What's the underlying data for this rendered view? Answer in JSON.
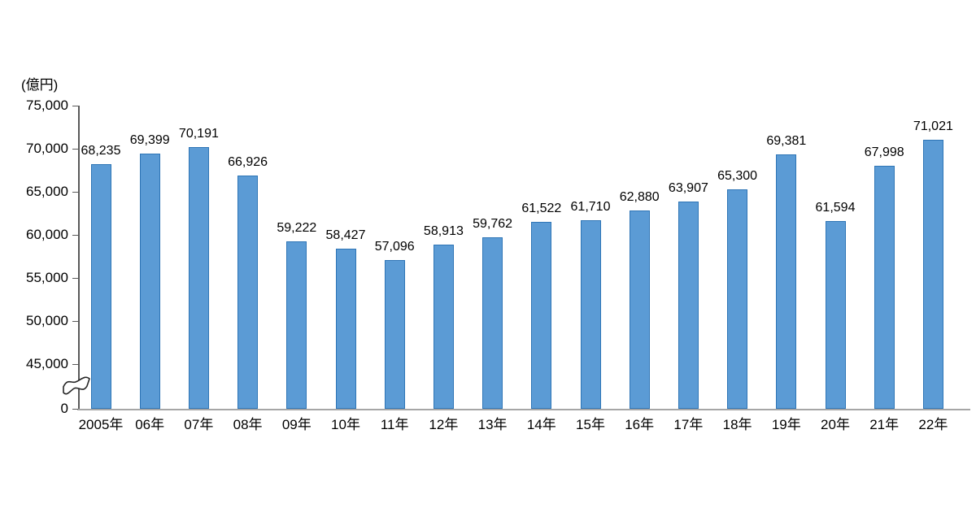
{
  "chart_data": {
    "type": "bar",
    "title": "",
    "xlabel": "",
    "ylabel": "(億円)",
    "categories": [
      "2005年",
      "06年",
      "07年",
      "08年",
      "09年",
      "10年",
      "11年",
      "12年",
      "13年",
      "14年",
      "15年",
      "16年",
      "17年",
      "18年",
      "19年",
      "20年",
      "21年",
      "22年"
    ],
    "values": [
      68235,
      69399,
      70191,
      66926,
      59222,
      58427,
      57096,
      58913,
      59762,
      61522,
      61710,
      62880,
      63907,
      65300,
      69381,
      61594,
      67998,
      71021
    ],
    "value_labels": [
      "68,235",
      "69,399",
      "70,191",
      "66,926",
      "59,222",
      "58,427",
      "57,096",
      "58,913",
      "59,762",
      "61,522",
      "61,710",
      "62,880",
      "63,907",
      "65,300",
      "69,381",
      "61,594",
      "67,998",
      "71,021"
    ],
    "y_axis": {
      "unit_label": "(億円)",
      "tick_labels": [
        "75,000",
        "70,000",
        "65,000",
        "60,000",
        "55,000",
        "50,000",
        "45,000",
        "0"
      ],
      "tick_values": [
        75000,
        70000,
        65000,
        60000,
        55000,
        50000,
        45000,
        0
      ],
      "axis_break": true,
      "display_range": [
        45000,
        75000
      ]
    },
    "grid": false,
    "legend": "none",
    "colors": {
      "bar_fill": "#5B9BD5",
      "bar_border": "#2E75B6",
      "y_axis_line": "#595959",
      "x_axis_line": "#A6A6A6",
      "text": "#000000"
    }
  }
}
